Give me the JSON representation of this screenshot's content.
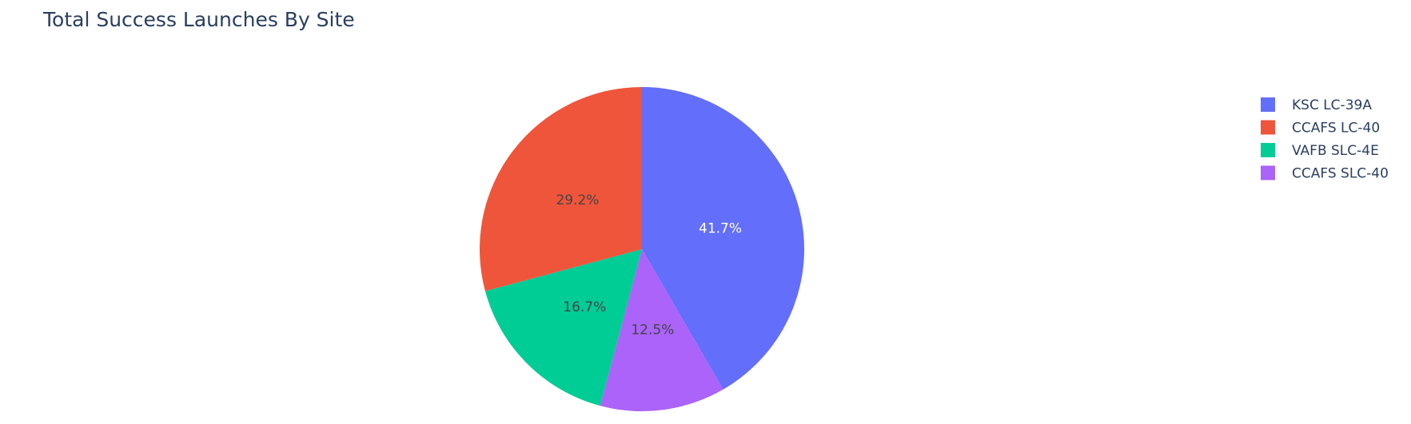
{
  "chart_data": {
    "type": "pie",
    "title": "Total Success Launches By Site",
    "categories": [
      "KSC LC-39A",
      "CCAFS LC-40",
      "VAFB SLC-4E",
      "CCAFS SLC-40"
    ],
    "values": [
      41.7,
      29.2,
      16.7,
      12.5
    ],
    "labels": [
      "41.7%",
      "29.2%",
      "16.7%",
      "12.5%"
    ],
    "colors": [
      "#636efa",
      "#ef553b",
      "#00cc96",
      "#ab63fa"
    ],
    "label_colors": [
      "#ffffff",
      "#444444",
      "#444444",
      "#444444"
    ],
    "order_on_pie": [
      "KSC LC-39A",
      "CCAFS SLC-40",
      "VAFB SLC-4E",
      "CCAFS LC-40"
    ],
    "direction": "clockwise",
    "start": "top",
    "legend": {
      "placement": "top-right",
      "items": [
        "KSC LC-39A",
        "CCAFS LC-40",
        "VAFB SLC-4E",
        "CCAFS SLC-40"
      ]
    }
  }
}
